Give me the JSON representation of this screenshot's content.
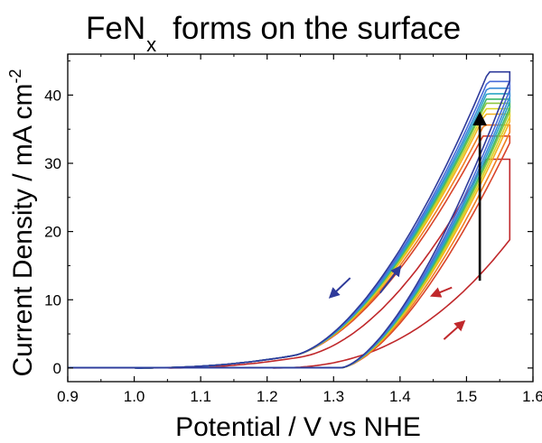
{
  "chart_data": {
    "type": "line",
    "title_main": "FeN",
    "title_sub": "x",
    "title_rest": "forms on the surface",
    "xlabel": "Potential / V vs NHE",
    "ylabel": "Current Density / mA cm",
    "ylabel_sup": "-2",
    "xlim": [
      0.9,
      1.6
    ],
    "ylim": [
      -2,
      46
    ],
    "xticks": [
      "0.9",
      "1.0",
      "1.1",
      "1.2",
      "1.3",
      "1.4",
      "1.5",
      "1.6"
    ],
    "yticks": [
      "0",
      "10",
      "20",
      "30",
      "40"
    ],
    "grid": false,
    "series": [
      {
        "color": "#c0282b",
        "peak": 30.6,
        "onset": 1.2,
        "bottom_peak": 18.8,
        "first": true
      },
      {
        "color": "#d8442a",
        "peak": 34.0
      },
      {
        "color": "#f07d22",
        "peak": 35.6
      },
      {
        "color": "#f4b11f",
        "peak": 37.2
      },
      {
        "color": "#d9d21f",
        "peak": 38.0
      },
      {
        "color": "#8cc63f",
        "peak": 38.8
      },
      {
        "color": "#3db86a",
        "peak": 39.4
      },
      {
        "color": "#2aa6c6",
        "peak": 40.2
      },
      {
        "color": "#3a8ad8",
        "peak": 41.0
      },
      {
        "color": "#4a6bd8",
        "peak": 42.0
      },
      {
        "color": "#2e3a9a",
        "peak": 43.4
      }
    ],
    "annotations": {
      "black_arrow": {
        "x": 1.52,
        "y_from": 12.8,
        "y_to": 37.2,
        "color": "#000000"
      },
      "blue_arrows": [
        {
          "x_from": 1.325,
          "y_from": 13.2,
          "x_to": 1.295,
          "y_to": 10.4,
          "color": "#2e3a9a"
        },
        {
          "x_from": 1.37,
          "y_from": 11.0,
          "x_to": 1.4,
          "y_to": 14.8,
          "color": "#2e3a9a"
        }
      ],
      "red_arrows": [
        {
          "x_from": 1.478,
          "y_from": 11.8,
          "x_to": 1.448,
          "y_to": 10.6,
          "color": "#c0282b"
        },
        {
          "x_from": 1.466,
          "y_from": 4.2,
          "x_to": 1.496,
          "y_to": 6.8,
          "color": "#c0282b"
        }
      ]
    }
  }
}
